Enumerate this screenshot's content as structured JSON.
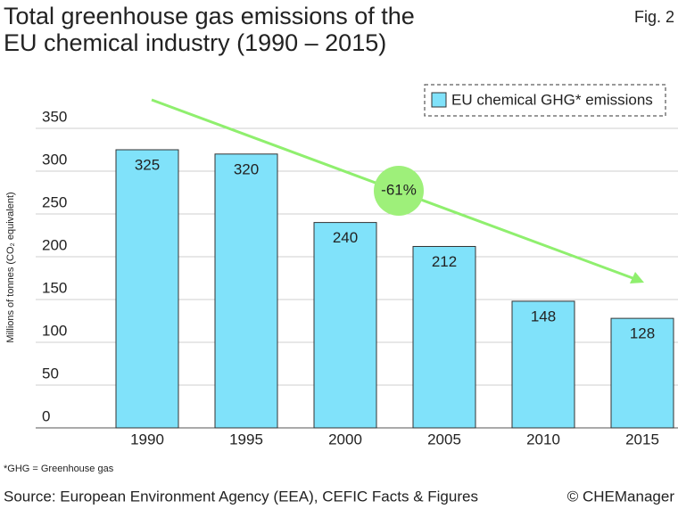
{
  "chart_data": {
    "type": "bar",
    "title": [
      "Total greenhouse gas emissions of the",
      "EU chemical industry (1990 – 2015)"
    ],
    "figure_label": "Fig. 2",
    "y_axis_label": "Millions of tonnes (CO₂ equivalent)",
    "categories": [
      "1990",
      "1995",
      "2000",
      "2005",
      "2010",
      "2015"
    ],
    "series": [
      {
        "name": "EU chemical GHG* emissions",
        "color": "#80e2fa",
        "values": [
          325,
          320,
          240,
          212,
          148,
          128
        ]
      }
    ],
    "ylim": [
      0,
      350
    ],
    "yticks": [
      0,
      50,
      100,
      150,
      200,
      250,
      300,
      350
    ],
    "grid": true,
    "annotation": "-61%",
    "footnote": "*GHG = Greenhouse gas",
    "source": "Source: European Environment Agency (EEA), CEFIC Facts & Figures",
    "copyright": "© CHEManager"
  }
}
